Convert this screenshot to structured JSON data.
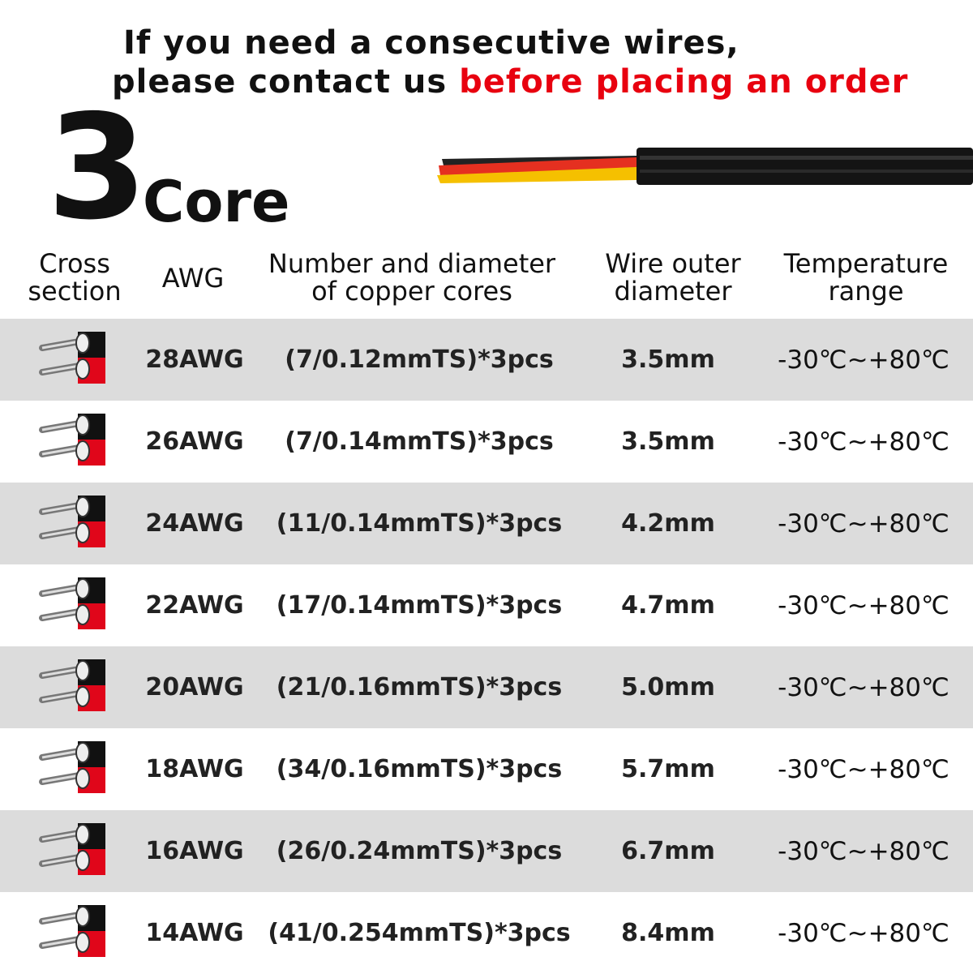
{
  "banner": {
    "line1": "If you need a consecutive wires,",
    "line2_black": "please contact us ",
    "line2_red": "before placing an order"
  },
  "title": {
    "number": "3",
    "word": "Core"
  },
  "colors": {
    "accent_red": "#e8000f",
    "row_gray": "#dcdcdc",
    "wire_colors": [
      "#111111",
      "#e53020",
      "#f5c000"
    ]
  },
  "table": {
    "headers": [
      [
        "Cross",
        "section"
      ],
      [
        "AWG"
      ],
      [
        "Number and diameter",
        "of copper cores"
      ],
      [
        "Wire outer",
        "diameter"
      ],
      [
        "Temperature",
        "range"
      ]
    ],
    "icon": "wire-cross-section-icon",
    "rows": [
      {
        "awg": "28AWG",
        "cores": "(7/0.12mmTS)*3pcs",
        "diameter": "3.5mm",
        "temp": "-30℃~+80℃"
      },
      {
        "awg": "26AWG",
        "cores": "(7/0.14mmTS)*3pcs",
        "diameter": "3.5mm",
        "temp": "-30℃~+80℃"
      },
      {
        "awg": "24AWG",
        "cores": "(11/0.14mmTS)*3pcs",
        "diameter": "4.2mm",
        "temp": "-30℃~+80℃"
      },
      {
        "awg": "22AWG",
        "cores": "(17/0.14mmTS)*3pcs",
        "diameter": "4.7mm",
        "temp": "-30℃~+80℃"
      },
      {
        "awg": "20AWG",
        "cores": "(21/0.16mmTS)*3pcs",
        "diameter": "5.0mm",
        "temp": "-30℃~+80℃"
      },
      {
        "awg": "18AWG",
        "cores": "(34/0.16mmTS)*3pcs",
        "diameter": "5.7mm",
        "temp": "-30℃~+80℃"
      },
      {
        "awg": "16AWG",
        "cores": "(26/0.24mmTS)*3pcs",
        "diameter": "6.7mm",
        "temp": "-30℃~+80℃"
      },
      {
        "awg": "14AWG",
        "cores": "(41/0.254mmTS)*3pcs",
        "diameter": "8.4mm",
        "temp": "-30℃~+80℃"
      }
    ]
  }
}
